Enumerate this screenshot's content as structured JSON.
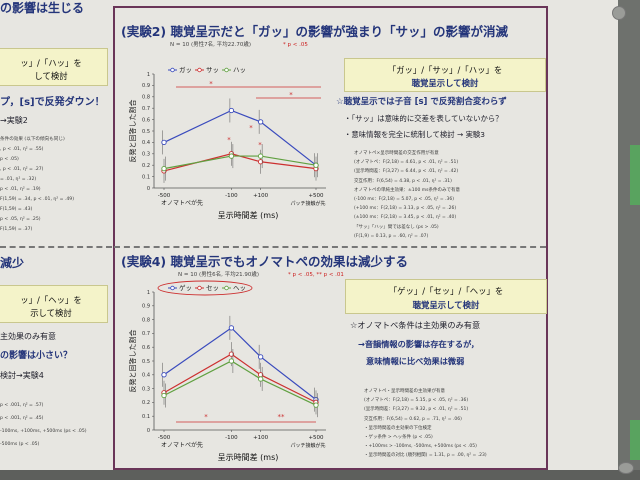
{
  "left_column": {
    "title1": "の影響は生じる",
    "box1_line1": "ッ」/「ハッ」を",
    "box1_line2": "して検討",
    "note1": "プ，[s]で反発ダウン！",
    "note2": "→実験2",
    "stats_lines": [
      "条件の効果 (以下の傾向も同じ)",
      ", p < .01, η² = .55)",
      "p < .05)",
      ", p < .01, η² = .27)",
      "= .01, η² = .32)",
      "p < .01, η² = .19)",
      "F(1,59) = .34, p < .01, η² = .49)",
      "F(1,59) = .43)",
      "p < .05, η² = .25)",
      "F(1,59) = .37)"
    ],
    "title2": "減少",
    "box2_line1": "ッ」/「ヘッ」を",
    "box2_line2": "示して検討",
    "note3": "主効果のみ有意",
    "note4": "の影響は小さい？",
    "note5": "検討→実験4",
    "stats2": [
      "p < .001, η² = .57)",
      "p < .001, η² = .45)",
      "-100ms, +100ms, +500ms (ps < .05)",
      "-500ms (p < .05)"
    ]
  },
  "exp2": {
    "title_label": "(実験2)",
    "title": "聴覚呈示だと「ガッ」の影響が強まり「サッ」の影響が消滅",
    "subtitle": "N = 10 (男性7名, 平均22.70歳)",
    "sig_legend": "*  p < .05",
    "legend": [
      "ガッ",
      "サッ",
      "ハッ"
    ],
    "ylabel": "反発と回答した割合",
    "xlabel": "呈示時間差 (ms)",
    "tick_labels": [
      "-500",
      "-100",
      "+100",
      "+500"
    ],
    "under_labels": [
      "オノマトペが先",
      "パッチ接触が先"
    ],
    "yticks": [
      "0",
      "0.1",
      "0.2",
      "0.3",
      "0.4",
      "0.5",
      "0.6",
      "0.7",
      "0.8",
      "0.9",
      "1"
    ],
    "box_line1": "「ガッ」/「サッ」/「ハッ」を",
    "box_line2": "聴覚呈示して検討",
    "bullet1": "☆聴覚呈示では子音 [s] で反発割合変わらず",
    "bullet2": "・「サッ」は意味的に交差を表していないから？",
    "bullet3": "・意味情報を完全に統制して検討 → 実験3",
    "stats": [
      "オノマトペ×呈示時間差の交互作用が有意",
      "(オノマトペ：F(2,18) = 4.61, p < .01, η² = .51)",
      "(呈示時間差：F(3,27) = 6.44, p < .01, η² = .42)",
      "交互作用：F(6,54) = 4.38, p < .01, η² = .31)",
      "オノマトペの単純主効果：±100 ms条件のみで有意",
      "(-100 ms：F(2,18) = 5.07, p < .05, η² = .36)",
      "(+100 ms：F(2,18) = 3.13, p < .05, η² = .26)",
      "(±100 ms：F(2,18) = 3.45, p < .01, η² = .40)",
      "「サッ」「ハッ」間では差なし (ps > .05)",
      "(F(1,9) = 0.13, p = .60, η² = .07)"
    ]
  },
  "exp4": {
    "title_label": "(実験4)",
    "title": "聴覚呈示でもオノマトペの効果は減少する",
    "subtitle": "N = 10 (男性6名, 平均21.90歳)",
    "sig_legend": "*  p < .05,   **  p < .01",
    "legend": [
      "ゲッ",
      "セッ",
      "ヘッ"
    ],
    "ylabel": "反発と回答した割合",
    "xlabel": "呈示時間差 (ms)",
    "tick_labels": [
      "-500",
      "-100",
      "+100",
      "+500"
    ],
    "under_labels": [
      "オノマトペが先",
      "パッチ接触が先"
    ],
    "yticks": [
      "0",
      "0.1",
      "0.2",
      "0.3",
      "0.4",
      "0.5",
      "0.6",
      "0.7",
      "0.8",
      "0.9",
      "1"
    ],
    "box_line1": "「ゲッ」/「セッ」/「ヘッ」を",
    "box_line2": "聴覚呈示して検討",
    "bullet1": "☆オノマトペ条件は主効果のみ有意",
    "bullet2": "→音韻情報の影響は存在するが，",
    "bullet3": "意味情報に比べ効果は微弱",
    "stats": [
      "オノマトペ・呈示時間差の主効果が有意",
      "(オノマトペ：F(2,18) = 5.15, p < .05, η² = .36)",
      "(呈示時間差：F(3,27) = 9.32, p < .01, η² = .51)",
      "交互作用：F(6,54) = 0.62, p = .71, η² = .06)",
      "・呈示時間差の主効果の下位検定",
      "・ゲッ条件 > ヘッ条件 (p < .05)",
      "・+100ms > -100ms, -500ms, +500ms (ps < .05)",
      "・呈示時間差の対比 (順列相関) = 1.31, p = .00, η² = .23)"
    ]
  },
  "chart_data": [
    {
      "type": "line",
      "title": "",
      "xlabel": "呈示時間差 (ms)",
      "ylabel": "反発と回答した割合",
      "categories": [
        "-500",
        "-100",
        "+100",
        "+500"
      ],
      "ylim": [
        0,
        1
      ],
      "legend_position": "top-left",
      "series": [
        {
          "name": "ガッ",
          "color": "#3a4bbd",
          "values": [
            0.4,
            0.68,
            0.58,
            0.2
          ]
        },
        {
          "name": "サッ",
          "color": "#cc3030",
          "values": [
            0.15,
            0.3,
            0.23,
            0.17
          ]
        },
        {
          "name": "ハッ",
          "color": "#60a040",
          "values": [
            0.17,
            0.28,
            0.28,
            0.2
          ]
        }
      ]
    },
    {
      "type": "line",
      "title": "",
      "xlabel": "呈示時間差 (ms)",
      "ylabel": "反発と回答した割合",
      "categories": [
        "-500",
        "-100",
        "+100",
        "+500"
      ],
      "ylim": [
        0,
        1
      ],
      "legend_position": "top-left",
      "series": [
        {
          "name": "ゲッ",
          "color": "#3a4bbd",
          "values": [
            0.4,
            0.74,
            0.53,
            0.22
          ]
        },
        {
          "name": "セッ",
          "color": "#cc3030",
          "values": [
            0.27,
            0.55,
            0.4,
            0.2
          ]
        },
        {
          "name": "ヘッ",
          "color": "#60a040",
          "values": [
            0.25,
            0.5,
            0.37,
            0.18
          ]
        }
      ]
    }
  ]
}
